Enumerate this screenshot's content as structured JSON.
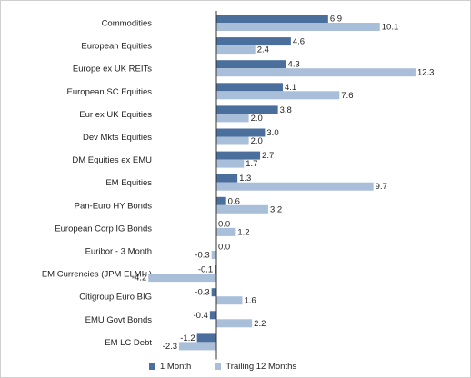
{
  "chart_data": {
    "type": "bar",
    "orientation": "horizontal",
    "categories": [
      "Commodities",
      "European Equities",
      "Europe ex UK REITs",
      "European SC Equities",
      "Eur ex UK Equities",
      "Dev Mkts Equities",
      "DM Equities ex EMU",
      "EM Equities",
      "Pan-Euro HY Bonds",
      "European Corp IG Bonds",
      "Euribor - 3 Month",
      "EM Currencies (JPM ELMI+)",
      "Citigroup Euro BIG",
      "EMU Govt Bonds",
      "EM LC Debt"
    ],
    "series": [
      {
        "name": "1 Month",
        "color": "#4a6f9d",
        "values": [
          6.9,
          4.6,
          4.3,
          4.1,
          3.8,
          3.0,
          2.7,
          1.3,
          0.6,
          0.0,
          0.0,
          -0.1,
          -0.3,
          -0.4,
          -1.2
        ],
        "labels": [
          "6.9",
          "4.6",
          "4.3",
          "4.1",
          "3.8",
          "3.0",
          "2.7",
          "1.3",
          "0.6",
          "0.0",
          "0.0",
          "-0.1",
          "-0.3",
          "-0.4",
          "-1.2"
        ]
      },
      {
        "name": "Trailing 12 Months",
        "color": "#a9bfd9",
        "values": [
          10.1,
          2.4,
          12.3,
          7.6,
          2.0,
          2.0,
          1.7,
          9.7,
          3.2,
          1.2,
          -0.3,
          -4.2,
          1.6,
          2.2,
          -2.3
        ],
        "labels": [
          "10.1",
          "2.4",
          "12.3",
          "7.6",
          "2.0",
          "2.0",
          "1.7",
          "9.7",
          "3.2",
          "1.2",
          "-0.3",
          "-4.2",
          "1.6",
          "2.2",
          "-2.3"
        ]
      }
    ],
    "xlim": [
      -4.2,
      12.3
    ],
    "grid": false,
    "legend_position": "bottom"
  }
}
